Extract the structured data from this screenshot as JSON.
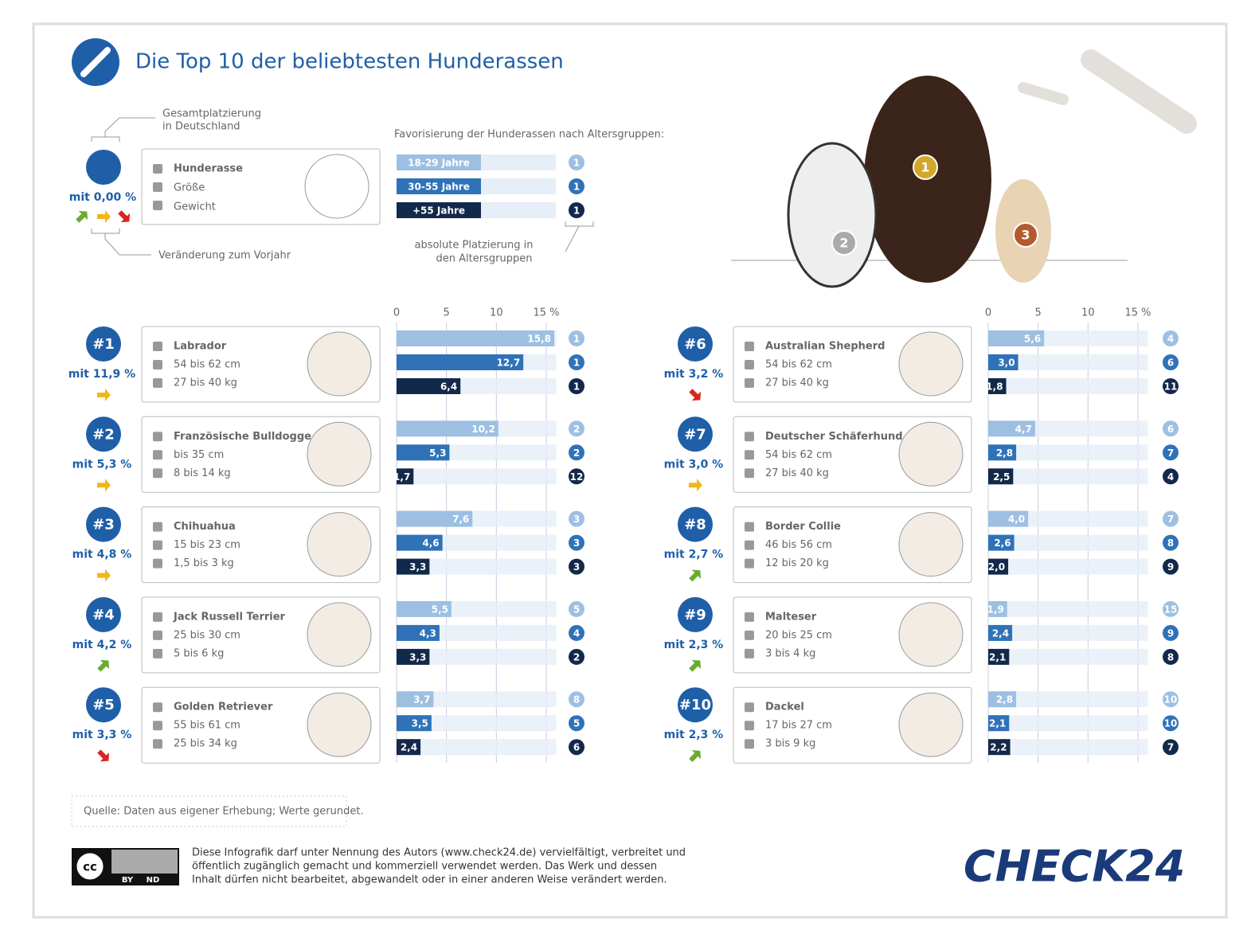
{
  "header": {
    "title": "Die Top 10 der beliebtesten Hunderassen"
  },
  "legend": {
    "placement_note": [
      "Gesamtplatzierung",
      "in Deutschland"
    ],
    "share": "mit 0,00 %",
    "fields": [
      "Hunderasse",
      "Größe",
      "Gewicht"
    ],
    "trend_note": "Veränderung zum Vorjahr",
    "chart_title": "Favorisierung der Hunderassen nach Altersgruppen:",
    "age_groups": [
      "18-29 Jahre",
      "30-55 Jahre",
      "+55 Jahre"
    ],
    "ranks": [
      1,
      1,
      1
    ],
    "rank_note": [
      "absolute Platzierung in",
      "den Altersgruppen"
    ]
  },
  "hero": {
    "medals": [
      1,
      2,
      3
    ]
  },
  "chart_data": {
    "type": "bar",
    "xlim": [
      0,
      16
    ],
    "xticks": [
      0,
      5,
      10,
      {
        "value": 15,
        "label": "15 %"
      }
    ],
    "colors": [
      "#9dc0e2",
      "#2f72b8",
      "#13294b"
    ],
    "breeds": [
      {
        "rank": "#1",
        "share": "mit 11,9 %",
        "trend": "same",
        "name": "Labrador",
        "size": "54 bis 62 cm",
        "weight": "27 bis 40 kg",
        "values": [
          15.8,
          12.7,
          6.4
        ],
        "value_labels": [
          "15,8",
          "12,7",
          "6,4"
        ],
        "ranks": [
          1,
          1,
          1
        ]
      },
      {
        "rank": "#2",
        "share": "mit 5,3 %",
        "trend": "same",
        "name": "Französische Bulldogge",
        "size": "bis 35 cm",
        "weight": "8 bis 14 kg",
        "values": [
          10.2,
          5.3,
          1.7
        ],
        "value_labels": [
          "10,2",
          "5,3",
          "1,7"
        ],
        "ranks": [
          2,
          2,
          12
        ]
      },
      {
        "rank": "#3",
        "share": "mit 4,8 %",
        "trend": "same",
        "name": "Chihuahua",
        "size": "15 bis 23 cm",
        "weight": "1,5 bis 3 kg",
        "values": [
          7.6,
          4.6,
          3.3
        ],
        "value_labels": [
          "7,6",
          "4,6",
          "3,3"
        ],
        "ranks": [
          3,
          3,
          3
        ]
      },
      {
        "rank": "#4",
        "share": "mit 4,2 %",
        "trend": "up",
        "name": "Jack Russell Terrier",
        "size": "25 bis 30 cm",
        "weight": "5 bis 6 kg",
        "values": [
          5.5,
          4.3,
          3.3
        ],
        "value_labels": [
          "5,5",
          "4,3",
          "3,3"
        ],
        "ranks": [
          5,
          4,
          2
        ]
      },
      {
        "rank": "#5",
        "share": "mit 3,3 %",
        "trend": "down",
        "name": "Golden Retriever",
        "size": "55 bis 61 cm",
        "weight": "25 bis 34 kg",
        "values": [
          3.7,
          3.5,
          2.4
        ],
        "value_labels": [
          "3,7",
          "3,5",
          "2,4"
        ],
        "ranks": [
          8,
          5,
          6
        ]
      },
      {
        "rank": "#6",
        "share": "mit 3,2 %",
        "trend": "down",
        "name": "Australian Shepherd",
        "size": "54 bis 62 cm",
        "weight": "27 bis 40 kg",
        "values": [
          5.6,
          3.0,
          1.8
        ],
        "value_labels": [
          "5,6",
          "3,0",
          "1,8"
        ],
        "ranks": [
          4,
          6,
          11
        ]
      },
      {
        "rank": "#7",
        "share": "mit 3,0 %",
        "trend": "same",
        "name": "Deutscher Schäferhund",
        "size": "54 bis 62 cm",
        "weight": "27 bis 40 kg",
        "values": [
          4.7,
          2.8,
          2.5
        ],
        "value_labels": [
          "4,7",
          "2,8",
          "2,5"
        ],
        "ranks": [
          6,
          7,
          4
        ]
      },
      {
        "rank": "#8",
        "share": "mit 2,7 %",
        "trend": "up",
        "name": "Border Collie",
        "size": "46 bis 56 cm",
        "weight": "12 bis 20 kg",
        "values": [
          4.0,
          2.6,
          2.0
        ],
        "value_labels": [
          "4,0",
          "2,6",
          "2,0"
        ],
        "ranks": [
          7,
          8,
          9
        ]
      },
      {
        "rank": "#9",
        "share": "mit 2,3 %",
        "trend": "up",
        "name": "Malteser",
        "size": "20 bis 25 cm",
        "weight": "3 bis 4 kg",
        "values": [
          1.9,
          2.4,
          2.1
        ],
        "value_labels": [
          "1,9",
          "2,4",
          "2,1"
        ],
        "ranks": [
          15,
          9,
          8
        ]
      },
      {
        "rank": "#10",
        "share": "mit 2,3 %",
        "trend": "up",
        "name": "Dackel",
        "size": "17 bis 27 cm",
        "weight": "3 bis 9 kg",
        "values": [
          2.8,
          2.1,
          2.2
        ],
        "value_labels": [
          "2,8",
          "2,1",
          "2,2"
        ],
        "ranks": [
          10,
          10,
          7
        ]
      }
    ]
  },
  "source": "Quelle: Daten aus eigener Erhebung; Werte gerundet.",
  "license": {
    "badge": [
      "cc",
      "BY",
      "ND"
    ],
    "text": [
      "Diese Infografik darf unter Nennung des Autors (www.check24.de) vervielfältigt, verbreitet und",
      "öffentlich zugänglich gemacht und kommerziell verwendet werden. Das Werk und dessen",
      "Inhalt dürfen nicht bearbeitet, abgewandelt oder in einer anderen Weise verändert werden."
    ]
  },
  "logo": "CHECK24"
}
